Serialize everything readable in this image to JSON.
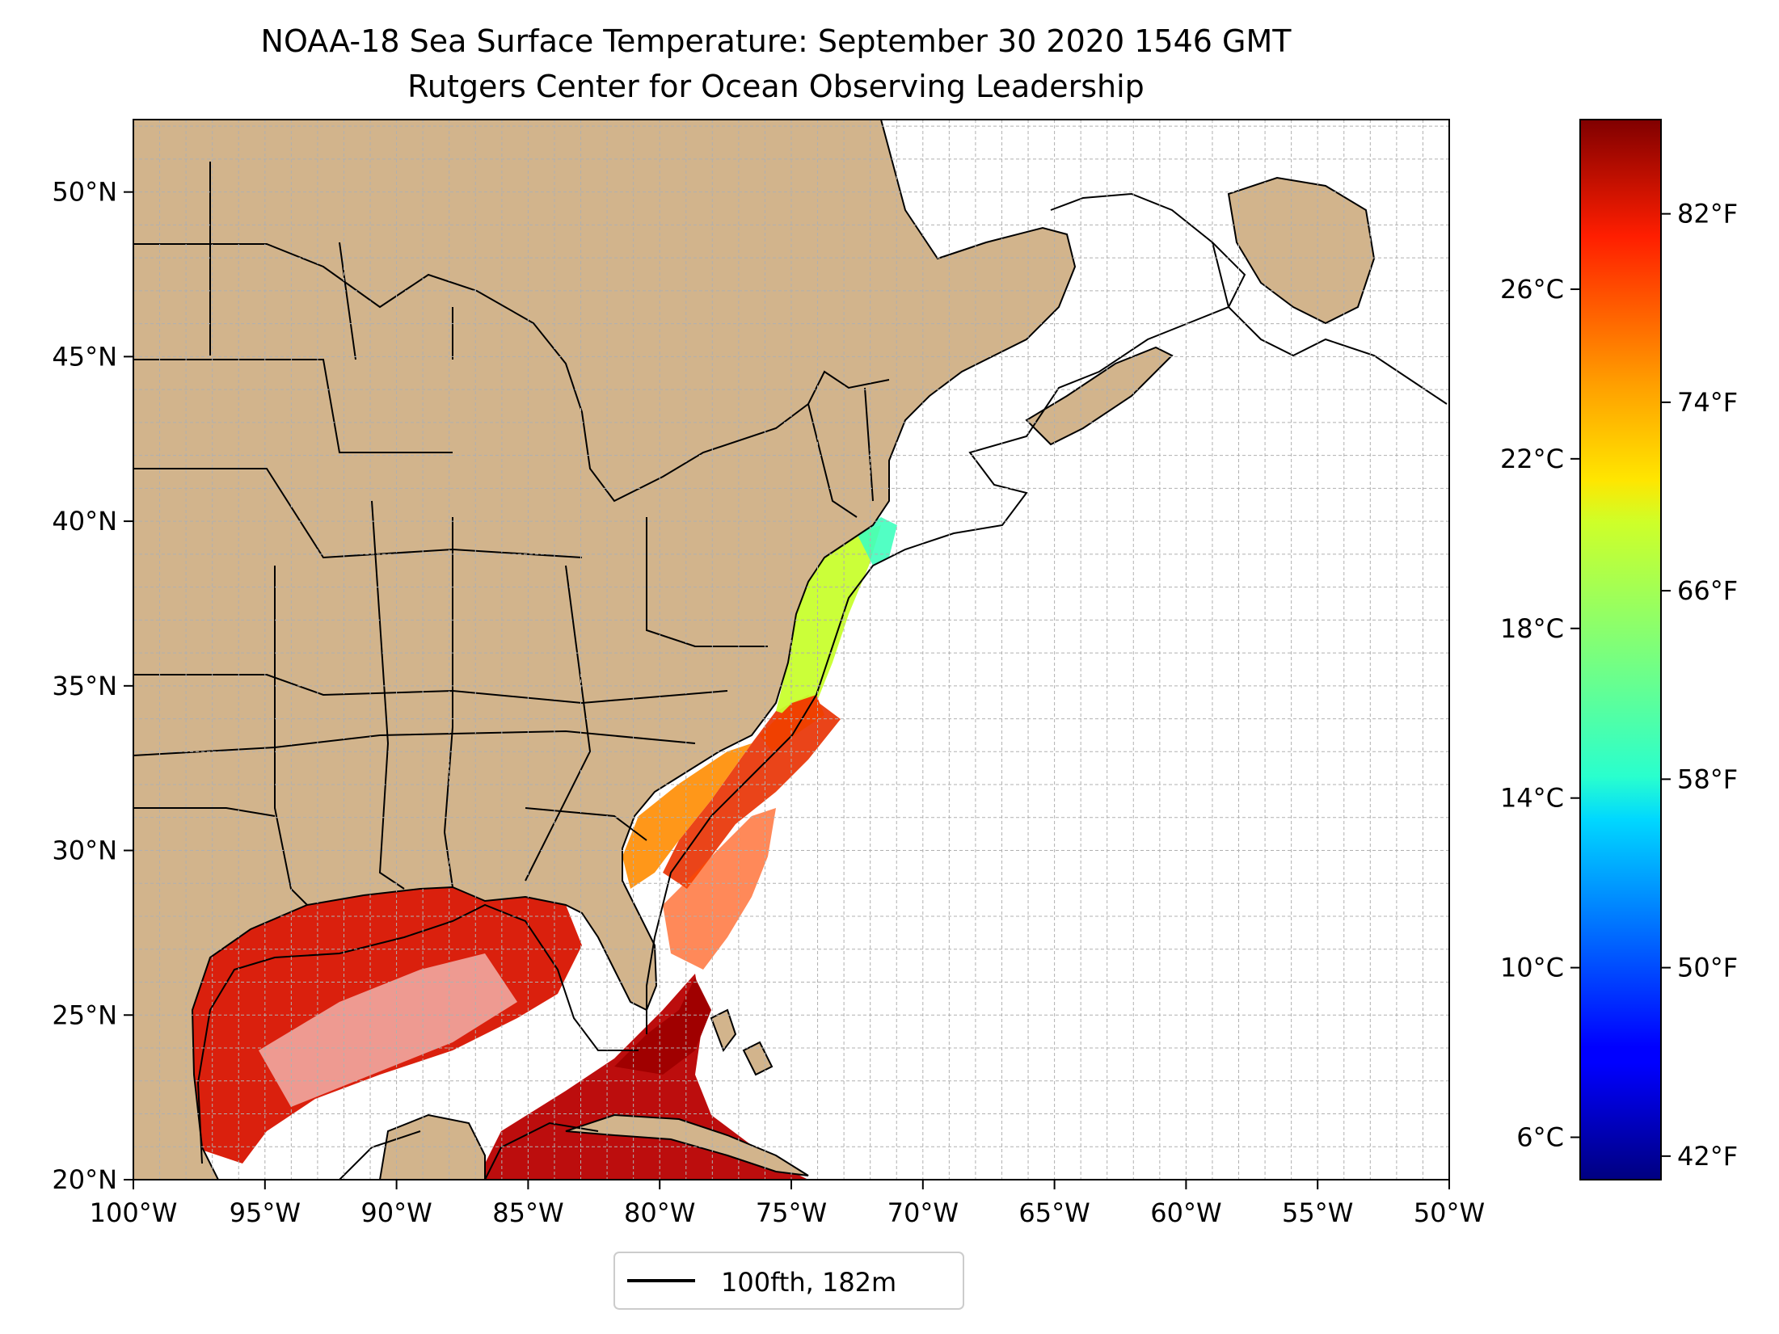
{
  "title": {
    "line1": "NOAA-18 Sea Surface Temperature: September 30 2020 1546 GMT",
    "line2": "Rutgers Center for Ocean Observing Leadership"
  },
  "map": {
    "lon_range": [
      -100,
      -50
    ],
    "lat_range": [
      20,
      52.2
    ],
    "lon_ticks": [
      {
        "value": -100,
        "label": "100°W"
      },
      {
        "value": -95,
        "label": "95°W"
      },
      {
        "value": -90,
        "label": "90°W"
      },
      {
        "value": -85,
        "label": "85°W"
      },
      {
        "value": -80,
        "label": "80°W"
      },
      {
        "value": -75,
        "label": "75°W"
      },
      {
        "value": -70,
        "label": "70°W"
      },
      {
        "value": -65,
        "label": "65°W"
      },
      {
        "value": -60,
        "label": "60°W"
      },
      {
        "value": -55,
        "label": "55°W"
      },
      {
        "value": -50,
        "label": "50°W"
      }
    ],
    "lat_ticks": [
      {
        "value": 20,
        "label": "20°N"
      },
      {
        "value": 25,
        "label": "25°N"
      },
      {
        "value": 30,
        "label": "30°N"
      },
      {
        "value": 35,
        "label": "35°N"
      },
      {
        "value": 40,
        "label": "40°N"
      },
      {
        "value": 45,
        "label": "45°N"
      },
      {
        "value": 50,
        "label": "50°N"
      }
    ],
    "colors": {
      "land": "#d2b48c",
      "lakes": "#99b3e6",
      "ocean": "#ffffff",
      "gridline": "#b0b0b0",
      "border": "#000000"
    }
  },
  "legend": {
    "label": "100fth, 182m"
  },
  "colorbar": {
    "colormap": "jet",
    "range_c": [
      5.0,
      30.0
    ],
    "celsius_ticks": [
      {
        "value": 6,
        "label": "6°C"
      },
      {
        "value": 10,
        "label": "10°C"
      },
      {
        "value": 14,
        "label": "14°C"
      },
      {
        "value": 18,
        "label": "18°C"
      },
      {
        "value": 22,
        "label": "22°C"
      },
      {
        "value": 26,
        "label": "26°C"
      }
    ],
    "fahrenheit_ticks": [
      {
        "value_f": 42,
        "label": "42°F"
      },
      {
        "value_f": 50,
        "label": "50°F"
      },
      {
        "value_f": 58,
        "label": "58°F"
      },
      {
        "value_f": 66,
        "label": "66°F"
      },
      {
        "value_f": 74,
        "label": "74°F"
      },
      {
        "value_f": 82,
        "label": "82°F"
      }
    ]
  }
}
